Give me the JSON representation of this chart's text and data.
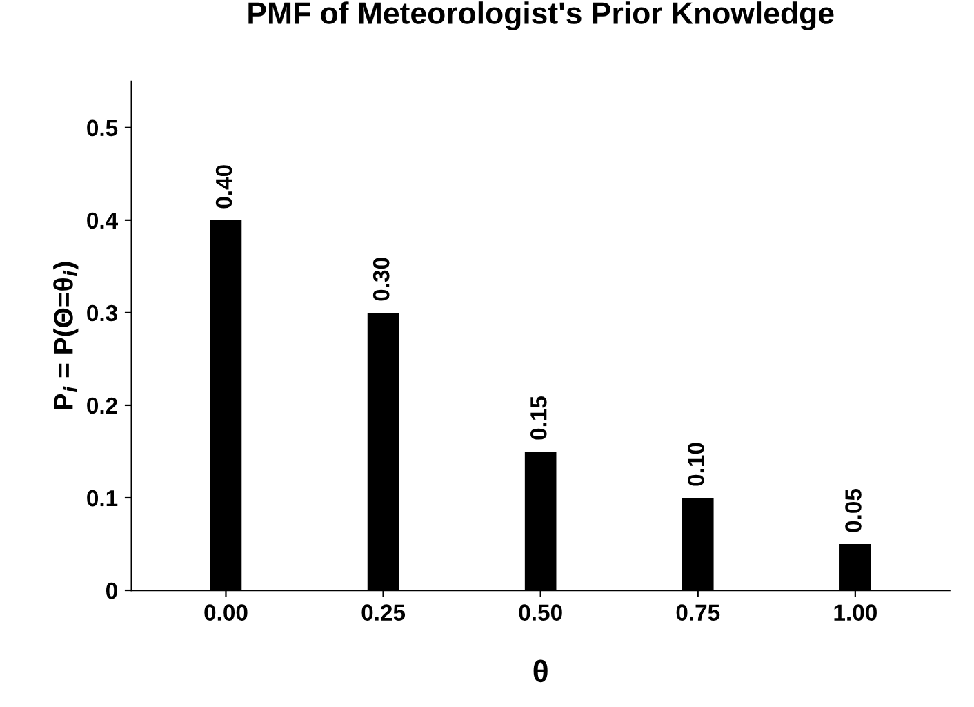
{
  "chart_data": {
    "type": "bar",
    "title": "PMF of Meteorologist's Prior Knowledge",
    "xlabel": "θ",
    "ylabel": "P$_{i}$ = P(Θ=θ$_{i}$)",
    "categories": [
      "0.00",
      "0.25",
      "0.50",
      "0.75",
      "1.00"
    ],
    "values": [
      0.4,
      0.3,
      0.15,
      0.1,
      0.05
    ],
    "value_labels": [
      "0.40",
      "0.30",
      "0.15",
      "0.10",
      "0.05"
    ],
    "color": "#000000",
    "ylim": [
      0,
      0.55
    ],
    "yticks": [
      0,
      0.1,
      0.2,
      0.3,
      0.4,
      0.5
    ],
    "grid": false,
    "legend": false
  }
}
